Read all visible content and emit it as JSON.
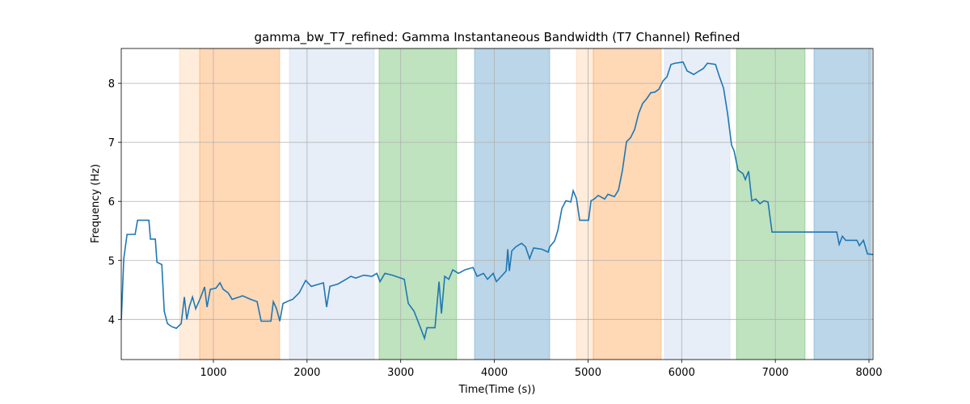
{
  "chart_data": {
    "type": "line",
    "title": "gamma_bw_T7_refined: Gamma Instantaneous Bandwidth (T7 Channel) Refined",
    "xlabel": "Time(Time (s))",
    "ylabel": "Frequency (Hz)",
    "color": "#1f77b4",
    "grid": true,
    "xlim": [
      16,
      8043
    ],
    "ylim": [
      3.32,
      8.59
    ],
    "xticks": [
      1000,
      2000,
      3000,
      4000,
      5000,
      6000,
      7000,
      8000
    ],
    "yticks": [
      4,
      5,
      6,
      7,
      8
    ],
    "spans": [
      {
        "start": 638,
        "end": 854,
        "color": "#ff7f0e",
        "alpha": 0.15
      },
      {
        "start": 854,
        "end": 1708,
        "color": "#ff7f0e",
        "alpha": 0.3
      },
      {
        "start": 1811,
        "end": 2717,
        "color": "#aec7e8",
        "alpha": 0.3
      },
      {
        "start": 2769,
        "end": 3598,
        "color": "#2ca02c",
        "alpha": 0.3
      },
      {
        "start": 3788,
        "end": 4591,
        "color": "#1f77b4",
        "alpha": 0.3
      },
      {
        "start": 4876,
        "end": 5057,
        "color": "#ff7f0e",
        "alpha": 0.15
      },
      {
        "start": 5057,
        "end": 5782,
        "color": "#ff7f0e",
        "alpha": 0.3
      },
      {
        "start": 5817,
        "end": 6516,
        "color": "#aec7e8",
        "alpha": 0.3
      },
      {
        "start": 6585,
        "end": 7318,
        "color": "#2ca02c",
        "alpha": 0.3
      },
      {
        "start": 7413,
        "end": 8026,
        "color": "#1f77b4",
        "alpha": 0.3
      }
    ],
    "x": [
      17,
      43,
      78,
      164,
      190,
      311,
      328,
      380,
      397,
      449,
      475,
      509,
      552,
      604,
      656,
      690,
      716,
      742,
      777,
      811,
      863,
      906,
      932,
      967,
      1027,
      1070,
      1105,
      1157,
      1200,
      1312,
      1398,
      1467,
      1510,
      1614,
      1640,
      1674,
      1709,
      1743,
      1812,
      1847,
      1916,
      1985,
      2045,
      2175,
      2209,
      2244,
      2330,
      2416,
      2468,
      2520,
      2607,
      2693,
      2745,
      2779,
      2831,
      2909,
      3038,
      3081,
      3142,
      3211,
      3254,
      3280,
      3366,
      3409,
      3435,
      3470,
      3513,
      3556,
      3617,
      3686,
      3772,
      3815,
      3884,
      3927,
      3987,
      4022,
      4074,
      4126,
      4143,
      4160,
      4186,
      4229,
      4290,
      4333,
      4376,
      4419,
      4505,
      4574,
      4591,
      4643,
      4678,
      4721,
      4764,
      4816,
      4842,
      4876,
      4911,
      5006,
      5032,
      5066,
      5109,
      5178,
      5213,
      5282,
      5325,
      5368,
      5411,
      5455,
      5498,
      5541,
      5584,
      5627,
      5670,
      5713,
      5757,
      5800,
      5843,
      5886,
      5929,
      6015,
      6058,
      6128,
      6188,
      6231,
      6275,
      6361,
      6404,
      6447,
      6490,
      6533,
      6559,
      6602,
      6654,
      6680,
      6715,
      6749,
      6792,
      6836,
      6879,
      6922,
      6965,
      7656,
      7682,
      7716,
      7751,
      7872,
      7898,
      7941,
      7984,
      8044
    ],
    "values": [
      4.0,
      5.03,
      5.44,
      5.44,
      5.68,
      5.68,
      5.36,
      5.36,
      4.97,
      4.93,
      4.14,
      3.93,
      3.88,
      3.85,
      3.93,
      4.38,
      4.0,
      4.21,
      4.38,
      4.18,
      4.37,
      4.55,
      4.21,
      4.51,
      4.53,
      4.62,
      4.51,
      4.45,
      4.34,
      4.4,
      4.34,
      4.3,
      3.97,
      3.97,
      4.3,
      4.18,
      3.97,
      4.27,
      4.32,
      4.34,
      4.45,
      4.66,
      4.56,
      4.62,
      4.21,
      4.56,
      4.6,
      4.68,
      4.73,
      4.7,
      4.75,
      4.73,
      4.78,
      4.64,
      4.78,
      4.75,
      4.68,
      4.27,
      4.14,
      3.86,
      3.68,
      3.86,
      3.86,
      4.64,
      4.1,
      4.73,
      4.68,
      4.84,
      4.78,
      4.84,
      4.88,
      4.73,
      4.78,
      4.68,
      4.78,
      4.64,
      4.73,
      4.82,
      5.19,
      4.82,
      5.16,
      5.23,
      5.29,
      5.23,
      5.03,
      5.21,
      5.19,
      5.14,
      5.23,
      5.33,
      5.51,
      5.88,
      6.01,
      5.99,
      6.18,
      6.05,
      5.68,
      5.68,
      6.01,
      6.04,
      6.1,
      6.04,
      6.12,
      6.08,
      6.19,
      6.53,
      7.01,
      7.08,
      7.22,
      7.49,
      7.66,
      7.74,
      7.84,
      7.85,
      7.9,
      8.04,
      8.11,
      8.32,
      8.34,
      8.36,
      8.21,
      8.15,
      8.21,
      8.25,
      8.34,
      8.32,
      8.11,
      7.92,
      7.49,
      6.95,
      6.86,
      6.53,
      6.47,
      6.37,
      6.51,
      6.01,
      6.04,
      5.96,
      6.01,
      5.99,
      5.48,
      5.48,
      5.27,
      5.41,
      5.34,
      5.34,
      5.25,
      5.34,
      5.11,
      5.1
    ]
  }
}
